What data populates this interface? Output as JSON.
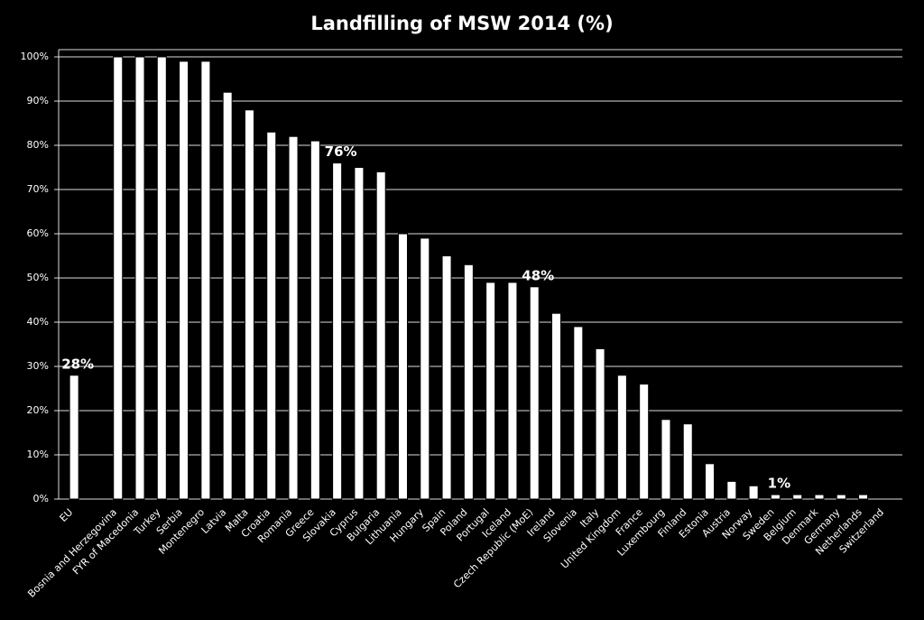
{
  "chart_data": {
    "type": "bar",
    "title": "Landfilling of MSW 2014 (%)",
    "categories": [
      "EU",
      null,
      "Bosnia and Herzegovina",
      "FYR of Macedonia",
      "Turkey",
      "Serbia",
      "Montenegro",
      "Latvia",
      "Malta",
      "Croatia",
      "Romania",
      "Greece",
      "Slovakia",
      "Cyprus",
      "Bulgaria",
      "Lithuania",
      "Hungary",
      "Spain",
      "Poland",
      "Portugal",
      "Iceland",
      "Czech Republic (MoE)",
      "Ireland",
      "Slovenia",
      "Italy",
      "United Kingdom",
      "France",
      "Luxembourg",
      "Finland",
      "Estonia",
      "Austria",
      "Norway",
      "Sweden",
      "Belgium",
      "Denmark",
      "Germany",
      "Netherlands",
      "Switzerland"
    ],
    "values": [
      28,
      null,
      100,
      100,
      100,
      99,
      99,
      92,
      88,
      83,
      82,
      81,
      76,
      75,
      74,
      60,
      59,
      55,
      53,
      49,
      49,
      48,
      42,
      39,
      34,
      28,
      26,
      18,
      17,
      8,
      4,
      3,
      1,
      1,
      1,
      1,
      1,
      0
    ],
    "value_labels": [
      "28%",
      null,
      null,
      null,
      null,
      null,
      null,
      null,
      null,
      null,
      null,
      null,
      "76%",
      null,
      null,
      null,
      null,
      null,
      null,
      null,
      null,
      "48%",
      null,
      null,
      null,
      null,
      null,
      null,
      null,
      null,
      null,
      null,
      "1%",
      null,
      null,
      null,
      null,
      null
    ],
    "color": "#ffffff",
    "ylim": [
      0,
      100
    ],
    "yticks": [
      {
        "value": 0,
        "label": "0%"
      },
      {
        "value": 10,
        "label": "10%"
      },
      {
        "value": 20,
        "label": "20%"
      },
      {
        "value": 30,
        "label": "30%"
      },
      {
        "value": 40,
        "label": "40%"
      },
      {
        "value": 50,
        "label": "50%"
      },
      {
        "value": 60,
        "label": "60%"
      },
      {
        "value": 70,
        "label": "70%"
      },
      {
        "value": 80,
        "label": "80%"
      },
      {
        "value": 90,
        "label": "90%"
      },
      {
        "value": 100,
        "label": "100%"
      }
    ],
    "grid": true
  }
}
